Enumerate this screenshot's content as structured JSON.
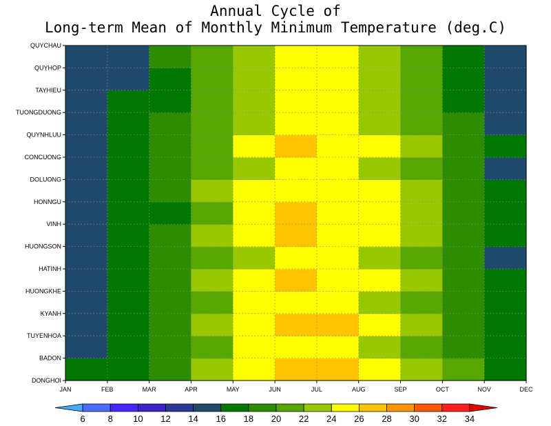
{
  "chart_data": {
    "type": "heatmap",
    "title": "Annual Cycle of",
    "subtitle": "Long-term Mean of Monthly Minimum Temperature (deg.C)",
    "x_ticks": [
      "JAN",
      "FEB",
      "MAR",
      "APR",
      "MAY",
      "JUN",
      "JUL",
      "AUG",
      "SEP",
      "OCT",
      "NOV",
      "DEC"
    ],
    "y_ticks": [
      "QUYCHAU",
      "QUYHOP",
      "TAYHIEU",
      "TUONGDUONG",
      "QUYNHLUU",
      "CONCUONG",
      "DOLUONG",
      "HONNGU",
      "VINH",
      "HUONGSON",
      "HATINH",
      "HUONGKHE",
      "KYANH",
      "TUYENHOA",
      "BADON",
      "DONGHOI"
    ],
    "columns": [
      "JAN-FEB",
      "FEB-MAR",
      "MAR-APR",
      "APR-MAY",
      "MAY-JUN",
      "JUN-JUL",
      "JUL-AUG",
      "AUG-SEP",
      "SEP-OCT",
      "OCT-NOV",
      "NOV-DEC"
    ],
    "rows": [
      "DONGHOI-BADON",
      "BADON-TUYENHOA",
      "TUYENHOA-KYANH",
      "KYANH-HUONGKHE",
      "HUONGKHE-HATINH",
      "HATINH-HUONGSON",
      "HUONGSON-VINH",
      "VINH-HONNGU",
      "HONNGU-DOLUONG",
      "DOLUONG-CONCUONG",
      "CONCUONG-QUYNHLUU",
      "QUYNHLUU-TUONGDUONG",
      "TUONGDUONG-TAYHIEU",
      "TAYHIEU-QUYHOP",
      "QUYHOP-QUYCHAU"
    ],
    "values": [
      [
        17,
        17,
        19,
        23,
        25,
        27,
        27,
        25,
        23,
        21,
        17
      ],
      [
        15,
        17,
        19,
        21,
        25,
        25,
        25,
        23,
        21,
        19,
        17
      ],
      [
        15,
        17,
        19,
        23,
        25,
        27,
        27,
        25,
        23,
        19,
        17
      ],
      [
        15,
        17,
        19,
        21,
        25,
        25,
        25,
        23,
        21,
        19,
        17
      ],
      [
        15,
        17,
        19,
        23,
        25,
        27,
        25,
        25,
        23,
        19,
        17
      ],
      [
        15,
        17,
        19,
        21,
        23,
        25,
        25,
        23,
        21,
        19,
        15
      ],
      [
        15,
        17,
        19,
        23,
        25,
        27,
        25,
        25,
        23,
        19,
        17
      ],
      [
        15,
        17,
        17,
        21,
        25,
        27,
        25,
        25,
        23,
        19,
        17
      ],
      [
        15,
        17,
        19,
        23,
        25,
        25,
        25,
        25,
        23,
        19,
        17
      ],
      [
        15,
        17,
        19,
        21,
        23,
        25,
        25,
        23,
        21,
        19,
        15
      ],
      [
        15,
        17,
        19,
        21,
        25,
        27,
        25,
        25,
        23,
        19,
        17
      ],
      [
        15,
        17,
        19,
        21,
        23,
        25,
        25,
        23,
        21,
        19,
        15
      ],
      [
        15,
        17,
        17,
        21,
        23,
        25,
        25,
        23,
        21,
        17,
        15
      ],
      [
        15,
        15,
        17,
        21,
        23,
        25,
        25,
        23,
        21,
        17,
        15
      ],
      [
        15,
        15,
        19,
        21,
        23,
        25,
        25,
        23,
        21,
        17,
        15
      ]
    ],
    "colorbar": {
      "levels": [
        6,
        8,
        10,
        12,
        14,
        16,
        18,
        20,
        22,
        24,
        26,
        28,
        30,
        32,
        34
      ],
      "colors": [
        "#47a9ff",
        "#4b6cff",
        "#4428ff",
        "#3a26c8",
        "#2a3a94",
        "#1f4a6c",
        "#007800",
        "#2d8c00",
        "#56a800",
        "#98c800",
        "#ffff00",
        "#ffc400",
        "#ff9400",
        "#ff5a00",
        "#ff2020",
        "#e80000"
      ]
    },
    "grid": true,
    "grid_style": "dotted"
  }
}
